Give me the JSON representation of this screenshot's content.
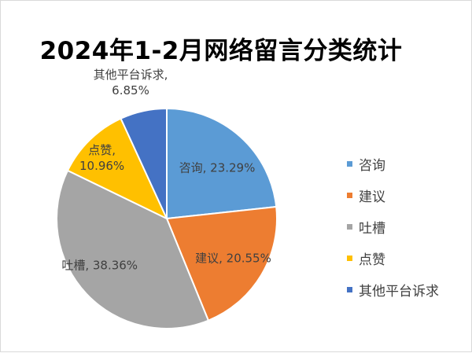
{
  "chart_data": {
    "type": "pie",
    "title": "2024年1-2月网络留言分类统计",
    "slices": [
      {
        "label": "咨询",
        "value": 23.29,
        "value_text": "23.29%",
        "color": "#5b9bd5"
      },
      {
        "label": "建议",
        "value": 20.55,
        "value_text": "20.55%",
        "color": "#ed7d31"
      },
      {
        "label": "吐槽",
        "value": 38.36,
        "value_text": "38.36%",
        "color": "#a5a5a5"
      },
      {
        "label": "点赞",
        "value": 10.96,
        "value_text": "10.96%",
        "color": "#ffc000"
      },
      {
        "label": "其他平台诉求",
        "value": 6.85,
        "value_text": "6.85%",
        "color": "#4472c4"
      }
    ],
    "legend_position": "right",
    "start_angle": "12 o'clock",
    "direction": "clockwise"
  }
}
